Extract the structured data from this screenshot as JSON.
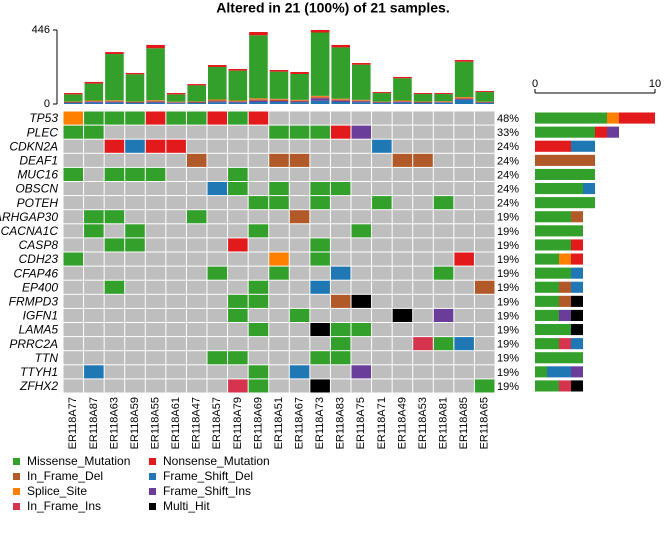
{
  "chart_data": {
    "type": "oncoplot",
    "title": "Altered in 21 (100%) of 21 samples.",
    "samples": [
      "ER118A77",
      "ER118A87",
      "ER118A63",
      "ER118A59",
      "ER118A55",
      "ER118A61",
      "ER118A47",
      "ER118A57",
      "ER118A79",
      "ER118A69",
      "ER118A51",
      "ER118A67",
      "ER118A73",
      "ER118A83",
      "ER118A75",
      "ER118A71",
      "ER118A49",
      "ER118A53",
      "ER118A81",
      "ER118A85",
      "ER118A65"
    ],
    "genes": [
      "TP53",
      "PLEC",
      "CDKN2A",
      "DEAF1",
      "MUC16",
      "OBSCN",
      "POTEH",
      "ARHGAP30",
      "CACNA1C",
      "CASP8",
      "CDH23",
      "CFAP46",
      "EP400",
      "FRMPD3",
      "IGFN1",
      "LAMA5",
      "PRRC2A",
      "TTN",
      "TTYH1",
      "ZFHX2"
    ],
    "values": [
      48,
      33,
      24,
      24,
      24,
      24,
      24,
      19,
      19,
      19,
      19,
      19,
      19,
      19,
      19,
      19,
      19,
      19,
      19,
      19
    ],
    "value_labels": [
      "48%",
      "33%",
      "24%",
      "24%",
      "24%",
      "24%",
      "24%",
      "19%",
      "19%",
      "19%",
      "19%",
      "19%",
      "19%",
      "19%",
      "19%",
      "19%",
      "19%",
      "19%",
      "19%",
      "19%"
    ],
    "ylim": [
      0,
      446
    ],
    "yticks": [
      0,
      446
    ],
    "xlim": [
      0,
      10
    ],
    "xticks": [
      0,
      10
    ],
    "series": [
      {
        "name": "Missense_Mutation",
        "color": "#33A02C",
        "tmb": [
          43,
          102,
          279,
          164,
          313,
          44,
          97,
          196,
          180,
          380,
          164,
          156,
          382,
          309,
          212,
          52,
          134,
          45,
          43,
          213,
          58
        ],
        "gene_counts": [
          6,
          5,
          0,
          0,
          5,
          4,
          5,
          3,
          4,
          3,
          2,
          3,
          2,
          2,
          2,
          3,
          2,
          4,
          1,
          2
        ]
      },
      {
        "name": "Nonsense_Mutation",
        "color": "#E31A1C",
        "tmb": [
          8,
          10,
          12,
          8,
          20,
          8,
          8,
          12,
          10,
          20,
          10,
          12,
          15,
          15,
          10,
          6,
          8,
          6,
          6,
          10,
          6
        ],
        "gene_counts": [
          3,
          1,
          3,
          0,
          0,
          0,
          0,
          0,
          0,
          1,
          1,
          0,
          0,
          0,
          0,
          0,
          0,
          0,
          0,
          0
        ]
      },
      {
        "name": "In_Frame_Del",
        "color": "#B15928",
        "tmb": [
          3,
          4,
          4,
          3,
          5,
          3,
          3,
          5,
          4,
          6,
          8,
          5,
          6,
          6,
          4,
          2,
          4,
          3,
          3,
          5,
          2
        ],
        "gene_counts": [
          0,
          0,
          0,
          5,
          0,
          0,
          0,
          1,
          0,
          0,
          0,
          0,
          1,
          1,
          0,
          0,
          0,
          0,
          0,
          0
        ]
      },
      {
        "name": "Frame_Shift_Del",
        "color": "#1F78B4",
        "tmb": [
          6,
          8,
          8,
          6,
          8,
          5,
          6,
          10,
          8,
          12,
          12,
          10,
          20,
          12,
          10,
          6,
          8,
          6,
          8,
          25,
          6
        ],
        "gene_counts": [
          0,
          0,
          2,
          0,
          0,
          1,
          0,
          0,
          0,
          0,
          0,
          1,
          1,
          0,
          0,
          0,
          1,
          0,
          2,
          0
        ]
      },
      {
        "name": "Splice_Site",
        "color": "#FF7F00",
        "tmb": [
          2,
          3,
          3,
          2,
          3,
          2,
          2,
          4,
          3,
          5,
          3,
          3,
          5,
          4,
          3,
          2,
          3,
          2,
          2,
          4,
          2
        ],
        "gene_counts": [
          1,
          0,
          0,
          0,
          0,
          0,
          0,
          0,
          0,
          0,
          1,
          0,
          0,
          0,
          0,
          0,
          0,
          0,
          0,
          0
        ]
      },
      {
        "name": "Frame_Shift_Ins",
        "color": "#6A3D9A",
        "tmb": [
          3,
          5,
          5,
          3,
          5,
          3,
          3,
          6,
          5,
          8,
          6,
          5,
          15,
          8,
          6,
          3,
          5,
          3,
          3,
          6,
          3
        ],
        "gene_counts": [
          0,
          1,
          0,
          0,
          0,
          0,
          0,
          0,
          0,
          0,
          0,
          0,
          0,
          0,
          1,
          0,
          0,
          0,
          1,
          0
        ]
      },
      {
        "name": "In_Frame_Ins",
        "color": "#D6344E",
        "tmb": [
          1,
          1,
          2,
          1,
          2,
          1,
          1,
          2,
          1,
          3,
          2,
          2,
          3,
          2,
          2,
          1,
          1,
          1,
          1,
          2,
          1
        ],
        "gene_counts": [
          0,
          0,
          0,
          0,
          0,
          0,
          0,
          0,
          0,
          0,
          0,
          0,
          0,
          0,
          0,
          0,
          1,
          0,
          0,
          1
        ]
      },
      {
        "name": "Multi_Hit",
        "color": "#000000",
        "gene_counts": [
          0,
          0,
          0,
          0,
          0,
          0,
          0,
          0,
          0,
          0,
          0,
          0,
          0,
          1,
          1,
          1,
          0,
          0,
          0,
          1
        ]
      }
    ],
    "matrix": [
      [
        "Splice_Site",
        "Missense_Mutation",
        "Missense_Mutation",
        "Missense_Mutation",
        "Nonsense_Mutation",
        "Missense_Mutation",
        "Missense_Mutation",
        "Nonsense_Mutation",
        "Missense_Mutation",
        "Nonsense_Mutation",
        null,
        null,
        null,
        null,
        null,
        null,
        null,
        null,
        null,
        null,
        null
      ],
      [
        "Missense_Mutation",
        "Missense_Mutation",
        null,
        null,
        null,
        null,
        null,
        null,
        null,
        null,
        "Missense_Mutation",
        "Missense_Mutation",
        "Missense_Mutation",
        "Nonsense_Mutation",
        "Frame_Shift_Ins",
        null,
        null,
        null,
        null,
        null,
        null
      ],
      [
        null,
        null,
        "Nonsense_Mutation",
        "Frame_Shift_Del",
        "Nonsense_Mutation",
        "Nonsense_Mutation",
        null,
        null,
        null,
        null,
        null,
        null,
        null,
        null,
        null,
        "Frame_Shift_Del",
        null,
        null,
        null,
        null,
        null
      ],
      [
        null,
        null,
        null,
        null,
        null,
        null,
        "In_Frame_Del",
        null,
        null,
        null,
        "In_Frame_Del",
        "In_Frame_Del",
        null,
        null,
        null,
        null,
        "In_Frame_Del",
        "In_Frame_Del",
        null,
        null,
        null
      ],
      [
        "Missense_Mutation",
        null,
        "Missense_Mutation",
        "Missense_Mutation",
        "Missense_Mutation",
        null,
        null,
        null,
        "Missense_Mutation",
        null,
        null,
        null,
        null,
        null,
        null,
        null,
        null,
        null,
        null,
        null,
        null
      ],
      [
        null,
        null,
        null,
        null,
        null,
        null,
        null,
        "Frame_Shift_Del",
        "Missense_Mutation",
        null,
        "Missense_Mutation",
        null,
        "Missense_Mutation",
        "Missense_Mutation",
        null,
        null,
        null,
        null,
        null,
        null,
        null
      ],
      [
        null,
        null,
        null,
        null,
        null,
        null,
        null,
        null,
        null,
        "Missense_Mutation",
        "Missense_Mutation",
        null,
        "Missense_Mutation",
        null,
        null,
        "Missense_Mutation",
        null,
        null,
        "Missense_Mutation",
        null,
        null
      ],
      [
        null,
        "Missense_Mutation",
        "Missense_Mutation",
        null,
        null,
        null,
        "Missense_Mutation",
        null,
        null,
        null,
        null,
        "In_Frame_Del",
        null,
        null,
        null,
        null,
        null,
        null,
        null,
        null,
        null
      ],
      [
        null,
        "Missense_Mutation",
        null,
        "Missense_Mutation",
        null,
        null,
        null,
        null,
        null,
        "Missense_Mutation",
        null,
        null,
        null,
        null,
        "Missense_Mutation",
        null,
        null,
        null,
        null,
        null,
        null
      ],
      [
        null,
        null,
        "Missense_Mutation",
        "Missense_Mutation",
        null,
        null,
        null,
        null,
        "Nonsense_Mutation",
        null,
        null,
        null,
        "Missense_Mutation",
        null,
        null,
        null,
        null,
        null,
        null,
        null,
        null
      ],
      [
        "Missense_Mutation",
        null,
        null,
        null,
        null,
        null,
        null,
        null,
        null,
        null,
        "Splice_Site",
        null,
        "Missense_Mutation",
        null,
        null,
        null,
        null,
        null,
        null,
        "Nonsense_Mutation",
        null
      ],
      [
        null,
        null,
        null,
        null,
        null,
        null,
        null,
        "Missense_Mutation",
        null,
        null,
        "Missense_Mutation",
        null,
        null,
        "Frame_Shift_Del",
        null,
        null,
        null,
        null,
        "Missense_Mutation",
        null,
        null
      ],
      [
        null,
        null,
        "Missense_Mutation",
        null,
        null,
        null,
        null,
        null,
        null,
        "Missense_Mutation",
        null,
        null,
        "Frame_Shift_Del",
        null,
        null,
        null,
        null,
        null,
        null,
        null,
        "In_Frame_Del"
      ],
      [
        null,
        null,
        null,
        null,
        null,
        null,
        null,
        null,
        "Missense_Mutation",
        "Missense_Mutation",
        null,
        null,
        null,
        "In_Frame_Del",
        "Multi_Hit",
        null,
        null,
        null,
        null,
        null,
        null
      ],
      [
        null,
        null,
        null,
        null,
        null,
        null,
        null,
        null,
        "Missense_Mutation",
        null,
        null,
        "Missense_Mutation",
        null,
        null,
        null,
        null,
        "Multi_Hit",
        null,
        "Frame_Shift_Ins",
        null,
        null
      ],
      [
        null,
        null,
        null,
        null,
        null,
        null,
        null,
        null,
        null,
        "Missense_Mutation",
        null,
        null,
        "Multi_Hit",
        "Missense_Mutation",
        "Missense_Mutation",
        null,
        null,
        null,
        null,
        null,
        null
      ],
      [
        null,
        null,
        null,
        null,
        null,
        null,
        null,
        null,
        null,
        null,
        null,
        null,
        null,
        "Missense_Mutation",
        null,
        null,
        null,
        "In_Frame_Ins",
        "Missense_Mutation",
        "Frame_Shift_Del",
        null
      ],
      [
        null,
        null,
        null,
        null,
        null,
        null,
        null,
        "Missense_Mutation",
        "Missense_Mutation",
        null,
        null,
        null,
        "Missense_Mutation",
        "Missense_Mutation",
        null,
        null,
        null,
        null,
        null,
        null,
        null
      ],
      [
        null,
        "Frame_Shift_Del",
        null,
        null,
        null,
        null,
        null,
        null,
        null,
        "Missense_Mutation",
        null,
        "Frame_Shift_Del",
        null,
        null,
        "Frame_Shift_Ins",
        null,
        null,
        null,
        null,
        null,
        null
      ],
      [
        null,
        null,
        null,
        null,
        null,
        null,
        null,
        null,
        "In_Frame_Ins",
        "Missense_Mutation",
        null,
        null,
        "Multi_Hit",
        null,
        null,
        null,
        null,
        null,
        null,
        null,
        "Missense_Mutation"
      ]
    ]
  }
}
